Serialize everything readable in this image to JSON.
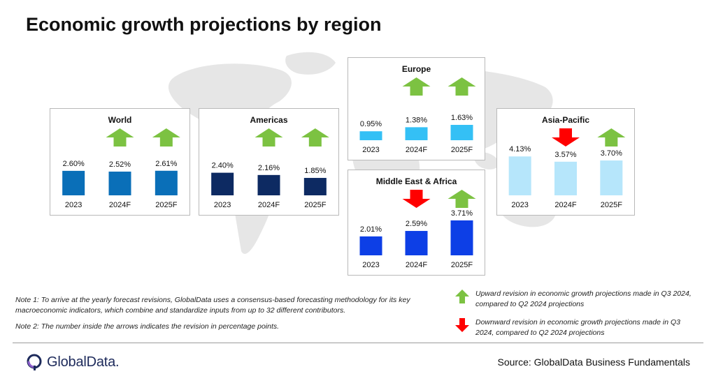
{
  "title": "Economic growth projections by region",
  "chart_data": [
    {
      "type": "bar",
      "title": "World",
      "categories": [
        "2023",
        "2024F",
        "2025F"
      ],
      "values": [
        2.6,
        2.52,
        2.61
      ],
      "value_labels": [
        "2.60%",
        "2.52%",
        "2.61%"
      ],
      "revisions": [
        "none",
        "up",
        "up"
      ],
      "color": "#0a6fb8"
    },
    {
      "type": "bar",
      "title": "Americas",
      "categories": [
        "2023",
        "2024F",
        "2025F"
      ],
      "values": [
        2.4,
        2.16,
        1.85
      ],
      "value_labels": [
        "2.40%",
        "2.16%",
        "1.85%"
      ],
      "revisions": [
        "none",
        "up",
        "up"
      ],
      "color": "#0d2a62"
    },
    {
      "type": "bar",
      "title": "Europe",
      "categories": [
        "2023",
        "2024F",
        "2025F"
      ],
      "values": [
        0.95,
        1.38,
        1.63
      ],
      "value_labels": [
        "0.95%",
        "1.38%",
        "1.63%"
      ],
      "revisions": [
        "none",
        "up",
        "up"
      ],
      "color": "#34c0f5"
    },
    {
      "type": "bar",
      "title": "Middle East & Africa",
      "categories": [
        "2023",
        "2024F",
        "2025F"
      ],
      "values": [
        2.01,
        2.59,
        3.71
      ],
      "value_labels": [
        "2.01%",
        "2.59%",
        "3.71%"
      ],
      "revisions": [
        "none",
        "down",
        "up"
      ],
      "color": "#0d3fe6"
    },
    {
      "type": "bar",
      "title": "Asia-Pacific",
      "categories": [
        "2023",
        "2024F",
        "2025F"
      ],
      "values": [
        4.13,
        3.57,
        3.7
      ],
      "value_labels": [
        "4.13%",
        "3.57%",
        "3.70%"
      ],
      "revisions": [
        "none",
        "down",
        "up"
      ],
      "color": "#b6e6fb"
    }
  ],
  "notes": {
    "note1": "Note 1: To arrive at the yearly forecast revisions, GlobalData uses a consensus-based forecasting methodology for its key macroeconomic indicators, which combine and standardize inputs from up to 32 different contributors.",
    "note2": "Note 2: The number inside the arrows indicates the revision in percentage points."
  },
  "legend": {
    "up": "Upward revision in economic growth projections made in Q3 2024, compared to Q2 2024 projections",
    "down": "Downward revision in economic growth projections made in Q3 2024, compared to Q2 2024 projections",
    "up_color": "#7cc242",
    "down_color": "#ff0000"
  },
  "footer": {
    "logo": "GlobalData.",
    "source": "Source: GlobalData Business Fundamentals"
  }
}
